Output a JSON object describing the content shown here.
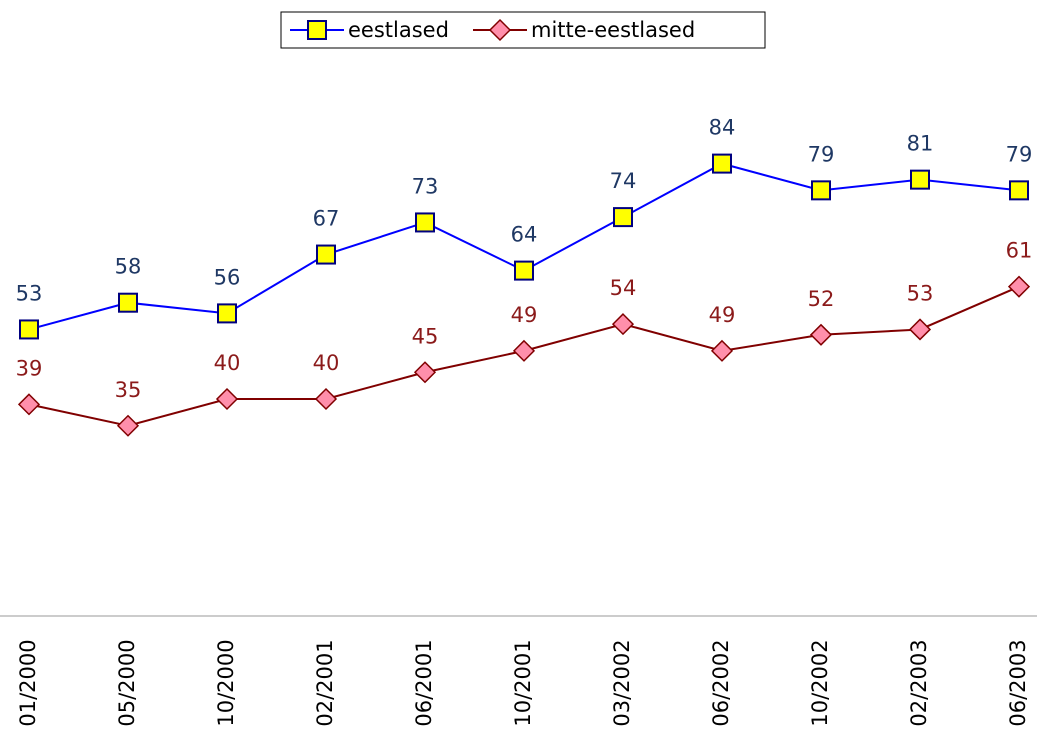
{
  "chart_data": {
    "type": "line",
    "categories": [
      "01/2000",
      "05/2000",
      "10/2000",
      "02/2001",
      "06/2001",
      "10/2001",
      "03/2002",
      "06/2002",
      "10/2002",
      "02/2003",
      "06/2003"
    ],
    "series": [
      {
        "name": "eestlased",
        "color": "#0000ff",
        "marker_fill": "#ffff00",
        "marker_stroke": "#000080",
        "label_color": "#1f3864",
        "marker": "square",
        "values": [
          53,
          58,
          56,
          67,
          73,
          64,
          74,
          84,
          79,
          81,
          79
        ]
      },
      {
        "name": "mitte-eestlased",
        "color": "#800000",
        "marker_fill": "#ff8fab",
        "marker_stroke": "#800000",
        "label_color": "#8b1a1a",
        "marker": "diamond",
        "values": [
          39,
          35,
          40,
          40,
          45,
          49,
          54,
          49,
          52,
          53,
          61
        ]
      }
    ],
    "ylim": [
      0,
      100
    ],
    "legend": "top"
  }
}
